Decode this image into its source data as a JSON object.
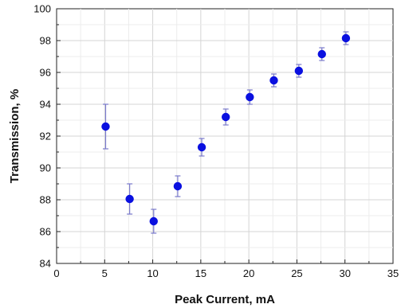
{
  "chart_data": {
    "type": "scatter",
    "xlabel": "Peak Current, mA",
    "ylabel": "Transmission, %",
    "xlim": [
      0,
      35
    ],
    "ylim": [
      84,
      100
    ],
    "x_ticks": [
      "0",
      "5",
      "10",
      "15",
      "20",
      "25",
      "30",
      "35"
    ],
    "y_ticks": [
      "84",
      "86",
      "88",
      "90",
      "92",
      "94",
      "96",
      "98",
      "100"
    ],
    "grid": true,
    "marker_color": "#0a10e0",
    "error_bar_color": "#7a7acc",
    "points": [
      {
        "x": 5.1,
        "y": 92.6,
        "err": 1.4
      },
      {
        "x": 7.6,
        "y": 88.05,
        "err": 0.95
      },
      {
        "x": 10.1,
        "y": 86.65,
        "err": 0.75
      },
      {
        "x": 12.6,
        "y": 88.85,
        "err": 0.65
      },
      {
        "x": 15.1,
        "y": 91.3,
        "err": 0.55
      },
      {
        "x": 17.6,
        "y": 93.2,
        "err": 0.5
      },
      {
        "x": 20.1,
        "y": 94.45,
        "err": 0.45
      },
      {
        "x": 22.6,
        "y": 95.5,
        "err": 0.4
      },
      {
        "x": 25.2,
        "y": 96.1,
        "err": 0.4
      },
      {
        "x": 27.6,
        "y": 97.15,
        "err": 0.4
      },
      {
        "x": 30.1,
        "y": 98.15,
        "err": 0.4
      }
    ]
  }
}
